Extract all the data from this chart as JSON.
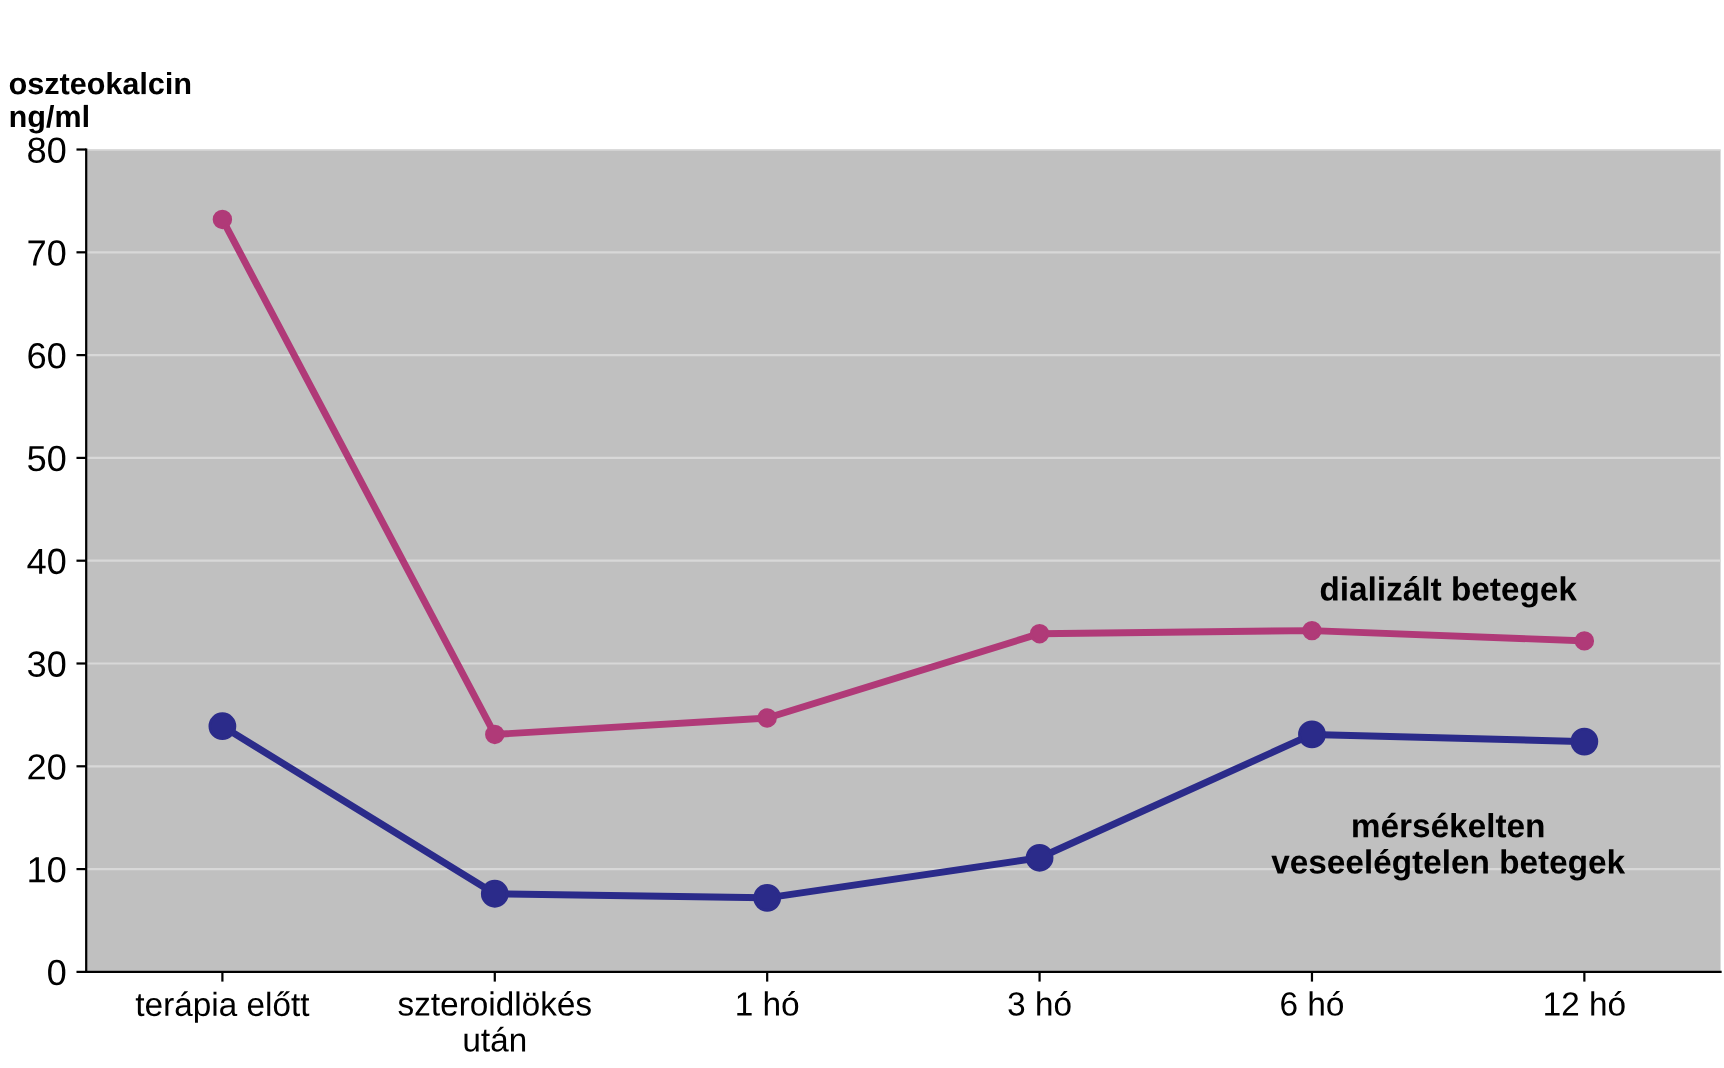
{
  "chart_data": {
    "type": "line",
    "ylabel": "oszteokalcin\nng/ml",
    "categories": [
      "terápia előtt",
      "szteroidlökés\nután",
      "1 hó",
      "3 hó",
      "6 hó",
      "12 hó"
    ],
    "series": [
      {
        "name": "dializált betegek",
        "color": "#b03a78",
        "values": [
          73.2,
          23.1,
          24.7,
          32.9,
          33.2,
          32.2
        ]
      },
      {
        "name": "mérsékelten\nveseelégtelen betegek",
        "color": "#2b2b8a",
        "values": [
          23.9,
          7.6,
          7.2,
          11.1,
          23.1,
          22.4
        ]
      }
    ],
    "ylim": [
      0,
      80
    ],
    "yticks": [
      0,
      10,
      20,
      30,
      40,
      50,
      60,
      70,
      80
    ],
    "grid": "y",
    "legend": false,
    "marker": "circle",
    "line_style": "solid"
  }
}
